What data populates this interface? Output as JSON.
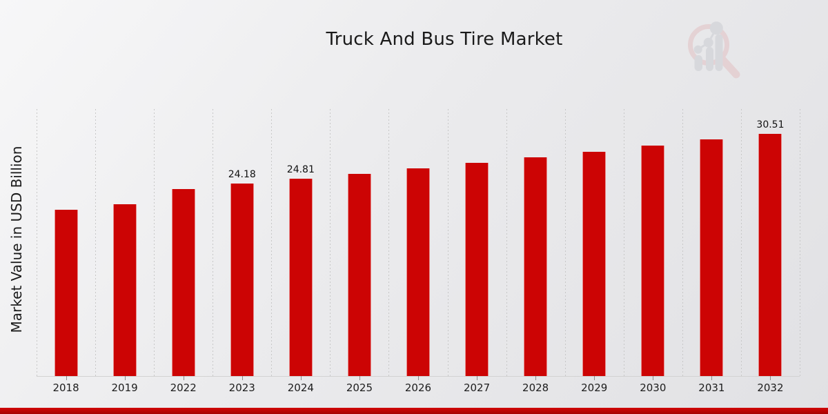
{
  "page": {
    "title": "Truck And Bus Tire Market",
    "ylabel": "Market Value in USD Billion"
  },
  "logo": {
    "name": "magnifier-bar-chart-watermark",
    "pink": "#e2bdbf",
    "gray": "#c8cad0"
  },
  "colors": {
    "bar": "#cc0404",
    "strip_top": "#d00606",
    "strip_bottom": "#a30202",
    "gridline": "#c7c7c7",
    "axis_line": "#d2d2d2",
    "tick": "#8c8c8c",
    "text": "#1a1a1a"
  },
  "chart_data": {
    "type": "bar",
    "title": "Truck And Bus Tire Market",
    "xlabel": "",
    "ylabel": "Market Value in USD Billion",
    "categories": [
      "2018",
      "2019",
      "2022",
      "2023",
      "2024",
      "2025",
      "2026",
      "2027",
      "2028",
      "2029",
      "2030",
      "2031",
      "2032"
    ],
    "values": [
      20.9,
      21.65,
      23.57,
      24.18,
      24.81,
      25.46,
      26.13,
      26.81,
      27.52,
      28.24,
      28.98,
      29.74,
      30.51
    ],
    "bar_labels": [
      "",
      "",
      "",
      "24.18",
      "24.81",
      "",
      "",
      "",
      "",
      "",
      "",
      "",
      "30.51"
    ],
    "ylim": [
      0,
      33.6
    ],
    "grid": "vertical-dashed",
    "legend": false,
    "bar_color": "#cc0404"
  }
}
